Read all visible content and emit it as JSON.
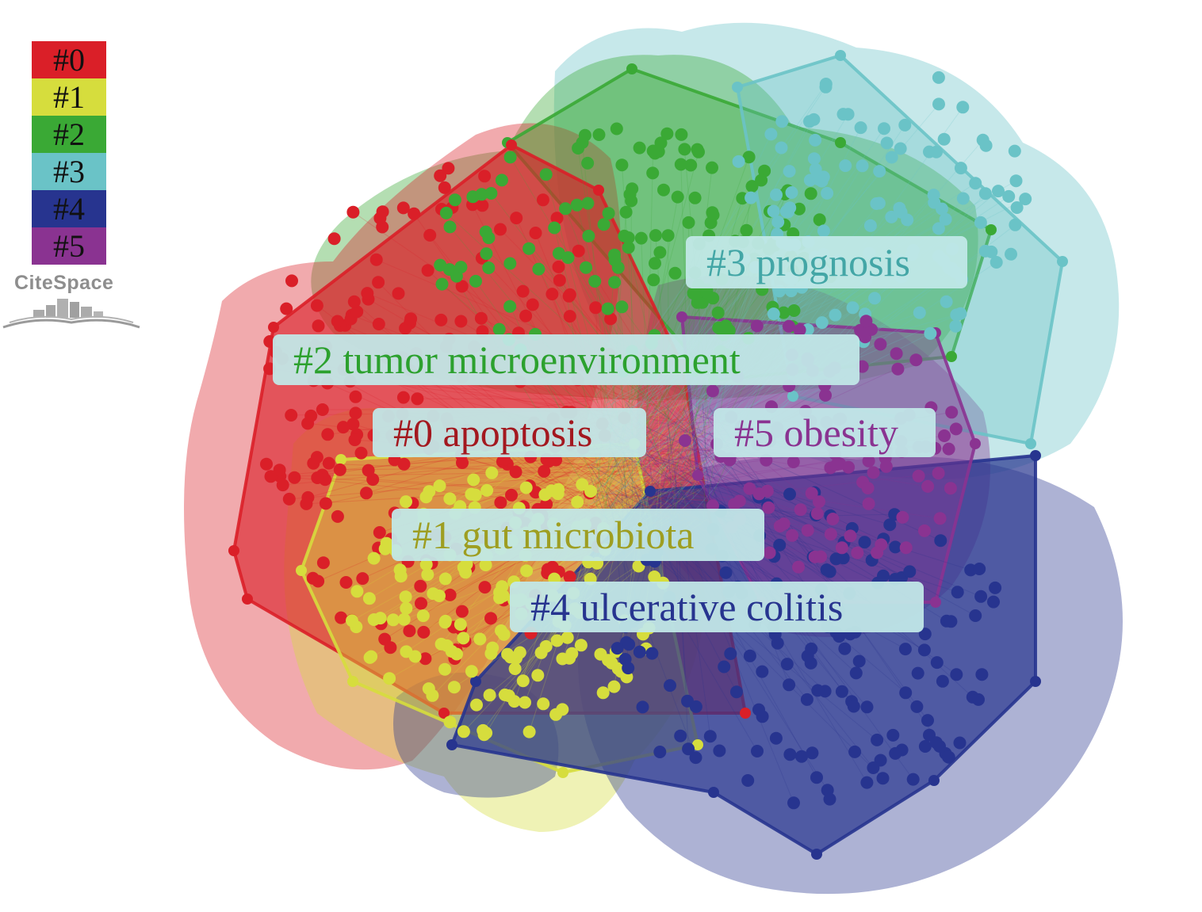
{
  "legend": {
    "items": [
      {
        "label": "#0",
        "color": "#da1f28"
      },
      {
        "label": "#1",
        "color": "#d6dd3d"
      },
      {
        "label": "#2",
        "color": "#3aa935"
      },
      {
        "label": "#3",
        "color": "#6ac3c7"
      },
      {
        "label": "#4",
        "color": "#27348f"
      },
      {
        "label": "#5",
        "color": "#8a3391"
      }
    ]
  },
  "logo": {
    "text": "CiteSpace"
  },
  "clusters": [
    {
      "id": "c0",
      "label": "#0 apoptosis",
      "color": "#da1f28",
      "text_color": "#a3181f"
    },
    {
      "id": "c1",
      "label": "#1 gut microbiota",
      "color": "#d6dd3d",
      "text_color": "#9e9e21"
    },
    {
      "id": "c2",
      "label": "#2 tumor microenvironment",
      "color": "#3aa935",
      "text_color": "#2ca12e"
    },
    {
      "id": "c3",
      "label": "#3 prognosis",
      "color": "#6ac3c7",
      "text_color": "#43a6a6"
    },
    {
      "id": "c4",
      "label": "#4 ulcerative colitis",
      "color": "#27348f",
      "text_color": "#27348f"
    },
    {
      "id": "c5",
      "label": "#5 obesity",
      "color": "#8a3391",
      "text_color": "#8a3391"
    }
  ]
}
